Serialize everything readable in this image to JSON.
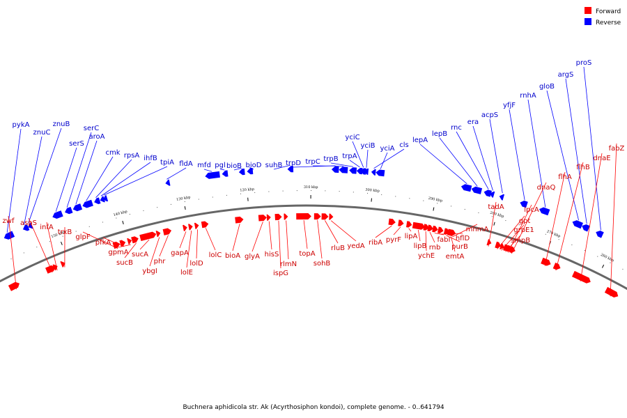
{
  "caption": "Buchnera aphidicola str. Ak (Acyrthosiphon kondoi), complete genome. - 0..641794",
  "legend": [
    {
      "key": "forward",
      "label": "Forward",
      "color": "#ff0000"
    },
    {
      "key": "reverse",
      "label": "Reverse",
      "color": "#0000ff"
    }
  ],
  "colors": {
    "forward": "#ff0000",
    "reverse": "#0000ff",
    "forward_label": "#cc0000",
    "reverse_label": "#0000cc",
    "backbone": "#666666"
  },
  "ticks": [
    "150 kbp",
    "140 kbp",
    "130 kbp",
    "120 kbp",
    "310 kbp",
    "300 kbp",
    "290 kbp",
    "280 kbp",
    "270 kbp",
    "260 kbp"
  ],
  "reverse_genes": [
    "pykA",
    "znuC",
    "znuB",
    "serS",
    "serC",
    "aroA",
    "cmk",
    "rpsA",
    "ihfB",
    "tpiA",
    "fldA",
    "mfd",
    "pgl",
    "bioB",
    "bioD",
    "suhB",
    "trpD",
    "trpC",
    "trpB",
    "trpA",
    "yciC",
    "yciB",
    "yciA",
    "cls",
    "lepA",
    "lepB",
    "rnc",
    "era",
    "acpS",
    "yfjF",
    "rnhA",
    "gloB",
    "argS",
    "proS"
  ],
  "forward_genes": [
    "zwf",
    "aspS",
    "infA",
    "trxB",
    "glpF",
    "pfkA",
    "gpmA",
    "sucB",
    "sucA",
    "ybgI",
    "phr",
    "gapA",
    "lolE",
    "lolD",
    "lolC",
    "bioA",
    "glyA",
    "hisS",
    "ispG",
    "rlmN",
    "topA",
    "sohB",
    "rluB",
    "yedA",
    "ribA",
    "pyrF",
    "lipA",
    "lipB",
    "ychE",
    "rnb",
    "fabI",
    "hflD",
    "purB",
    "emtA",
    "mnmA",
    "tadA",
    "gpt",
    "grpE1",
    "smpB",
    "lpcA",
    "dnaQ",
    "flhA",
    "flhB",
    "dnaE",
    "fabZ"
  ]
}
